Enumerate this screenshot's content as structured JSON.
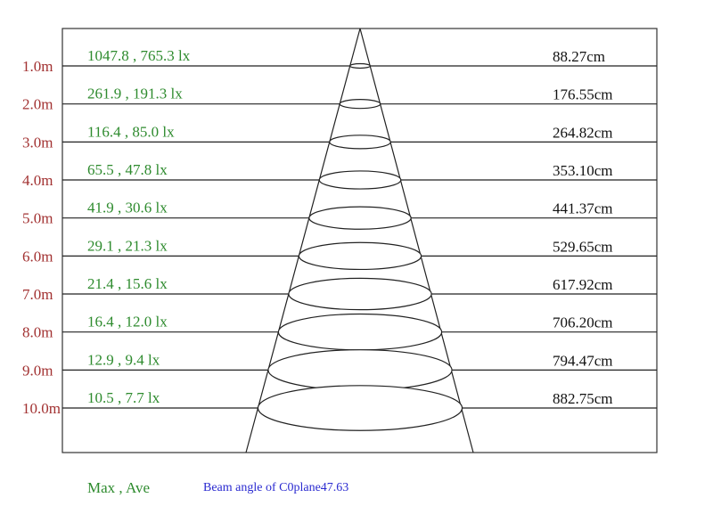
{
  "rows": [
    {
      "distance": "1.0m",
      "lux": "1047.8 , 765.3 lx",
      "diameter": "88.27cm"
    },
    {
      "distance": "2.0m",
      "lux": "261.9 , 191.3 lx",
      "diameter": "176.55cm"
    },
    {
      "distance": "3.0m",
      "lux": "116.4 , 85.0 lx",
      "diameter": "264.82cm"
    },
    {
      "distance": "4.0m",
      "lux": "65.5 , 47.8 lx",
      "diameter": "353.10cm"
    },
    {
      "distance": "5.0m",
      "lux": "41.9 , 30.6 lx",
      "diameter": "441.37cm"
    },
    {
      "distance": "6.0m",
      "lux": "29.1 , 21.3 lx",
      "diameter": "529.65cm"
    },
    {
      "distance": "7.0m",
      "lux": "21.4 , 15.6 lx",
      "diameter": "617.92cm"
    },
    {
      "distance": "8.0m",
      "lux": "16.4 , 12.0 lx",
      "diameter": "706.20cm"
    },
    {
      "distance": "9.0m",
      "lux": "12.9 , 9.4 lx",
      "diameter": "794.47cm"
    },
    {
      "distance": "10.0m",
      "lux": "10.5 , 7.7 lx",
      "diameter": "882.75cm"
    }
  ],
  "legend": "Max , Ave",
  "beam_angle": "Beam angle of C0plane47.63"
}
